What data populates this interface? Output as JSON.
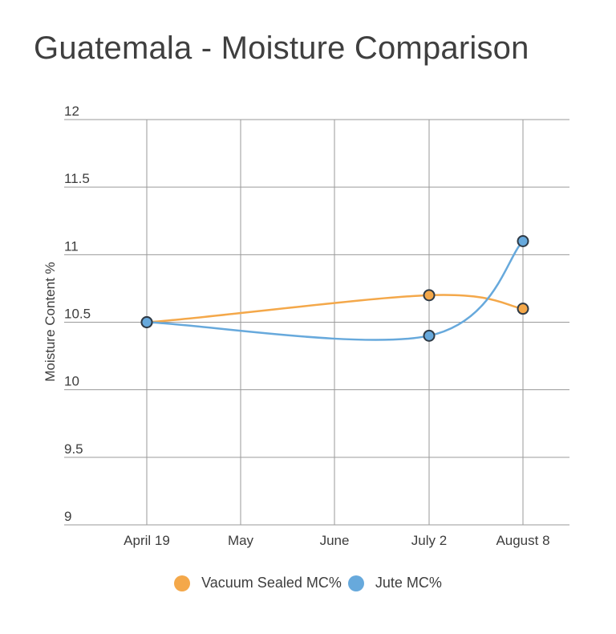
{
  "chart_data": {
    "type": "line",
    "title": "Guatemala - Moisture Comparison",
    "xlabel": "",
    "ylabel": "Moisture Content %",
    "categories": [
      "April 19",
      "May",
      "June",
      "July 2",
      "August 8"
    ],
    "ylim": [
      9,
      12
    ],
    "yticks": [
      "12",
      "11.5",
      "11",
      "10.5",
      "10",
      "9.5",
      "9"
    ],
    "grid": true,
    "legend_position": "bottom",
    "series": [
      {
        "name": "Vacuum Sealed MC%",
        "color": "#f4a84a",
        "points": [
          [
            0,
            10.5
          ],
          [
            3,
            10.7
          ],
          [
            4,
            10.6
          ]
        ]
      },
      {
        "name": "Jute MC%",
        "color": "#67a9dc",
        "points": [
          [
            0,
            10.5
          ],
          [
            3,
            10.4
          ],
          [
            4,
            11.1
          ]
        ]
      }
    ]
  }
}
